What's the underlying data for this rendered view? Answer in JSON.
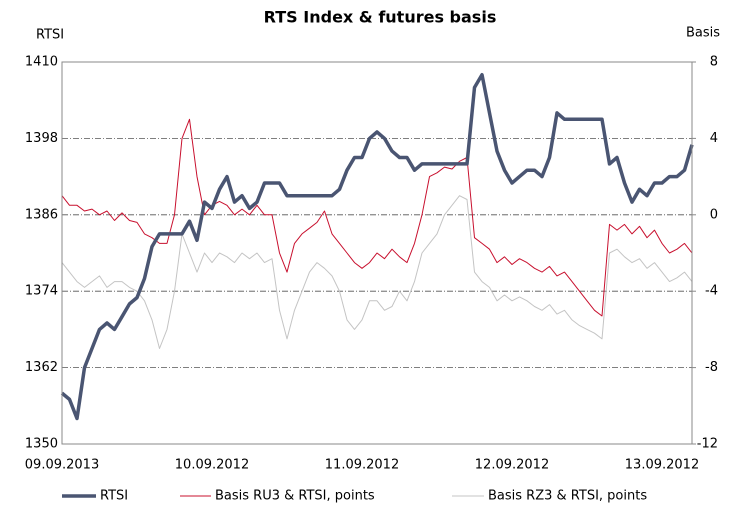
{
  "chart_data": {
    "type": "line",
    "title": "RTS Index & futures basis",
    "y_label": "RTSI",
    "y2_label": "Basis",
    "categories": [
      "09.09.2013",
      null,
      null,
      null,
      null,
      null,
      null,
      null,
      null,
      null,
      null,
      null,
      null,
      null,
      null,
      null,
      null,
      null,
      null,
      null,
      "10.09.2012",
      null,
      null,
      null,
      null,
      null,
      null,
      null,
      null,
      null,
      null,
      null,
      null,
      null,
      null,
      null,
      null,
      null,
      null,
      null,
      "11.09.2012",
      null,
      null,
      null,
      null,
      null,
      null,
      null,
      null,
      null,
      null,
      null,
      null,
      null,
      null,
      null,
      null,
      null,
      null,
      null,
      "12.09.2012",
      null,
      null,
      null,
      null,
      null,
      null,
      null,
      null,
      null,
      null,
      null,
      null,
      null,
      null,
      null,
      null,
      null,
      null,
      null,
      "13.09.2012",
      null,
      null,
      null,
      null
    ],
    "ylim": [
      1350,
      1410
    ],
    "yticks": [
      1350,
      1362,
      1374,
      1386,
      1398,
      1410
    ],
    "y2lim": [
      -12,
      8
    ],
    "y2ticks": [
      -12,
      -8,
      -4,
      0,
      4,
      8
    ],
    "grid": true,
    "legend": "bottom",
    "series": [
      {
        "name": "RTSI",
        "color": "#4a5572",
        "width": 3.5,
        "values": [
          1358,
          1357,
          1354,
          1362,
          1365,
          1368,
          1369,
          1368,
          1370,
          1372,
          1373,
          1376,
          1381,
          1383,
          1383,
          1383,
          1383,
          1385,
          1382,
          1388,
          1387,
          1390,
          1392,
          1388,
          1389,
          1387,
          1388,
          1391,
          1391,
          1391,
          1389,
          1389,
          1389,
          1389,
          1389,
          1389,
          1389,
          1390,
          1393,
          1395,
          1395,
          1398,
          1399,
          1398,
          1396,
          1395,
          1395,
          1393,
          1394,
          1394,
          1394,
          1394,
          1394,
          1394,
          1394,
          1406,
          1408,
          1402,
          1396,
          1393,
          1391,
          1392,
          1393,
          1393,
          1392,
          1395,
          1402,
          1401,
          1401,
          1401,
          1401,
          1401,
          1401,
          1394,
          1395,
          1391,
          1388,
          1390,
          1389,
          1391,
          1391,
          1392,
          1392,
          1393,
          1397
        ]
      },
      {
        "name": "Basis RU3 & RTSI, points",
        "color": "#c8102e",
        "width": 1,
        "axis": "y2",
        "values": [
          1,
          0.5,
          0.5,
          0.2,
          0.3,
          0,
          0.2,
          -0.3,
          0.1,
          -0.3,
          -0.4,
          -1,
          -1.2,
          -1.5,
          -1.5,
          0,
          4,
          5,
          2,
          0,
          0.5,
          0.7,
          0.5,
          0,
          0.3,
          0,
          0.5,
          0,
          0,
          -2,
          -3,
          -1.5,
          -1,
          -0.7,
          -0.4,
          0.2,
          -1,
          -1.5,
          -2,
          -2.5,
          -2.8,
          -2.5,
          -2,
          -2.3,
          -1.8,
          -2.2,
          -2.5,
          -1.5,
          0,
          2,
          2.2,
          2.5,
          2.4,
          2.8,
          3,
          -1.2,
          -1.5,
          -1.8,
          -2.5,
          -2.2,
          -2.6,
          -2.3,
          -2.5,
          -2.8,
          -3,
          -2.7,
          -3.2,
          -3,
          -3.5,
          -4,
          -4.5,
          -5,
          -5.3,
          -0.5,
          -0.8,
          -0.5,
          -1,
          -0.6,
          -1.2,
          -0.8,
          -1.5,
          -2,
          -1.8,
          -1.5,
          -2
        ]
      },
      {
        "name": "Basis RZ3 & RTSI, points",
        "color": "#c4c4c4",
        "width": 1,
        "axis": "y2",
        "values": [
          -2.5,
          -3,
          -3.5,
          -3.8,
          -3.5,
          -3.2,
          -3.8,
          -3.5,
          -3.5,
          -3.8,
          -4,
          -4.5,
          -5.5,
          -7,
          -6,
          -4,
          -1,
          -2,
          -3,
          -2,
          -2.5,
          -2,
          -2.2,
          -2.5,
          -2,
          -2.3,
          -2,
          -2.5,
          -2.3,
          -5,
          -6.5,
          -5,
          -4,
          -3,
          -2.5,
          -2.8,
          -3.2,
          -4,
          -5.5,
          -6,
          -5.5,
          -4.5,
          -4.5,
          -5,
          -4.8,
          -4,
          -4.5,
          -3.5,
          -2,
          -1.5,
          -1,
          0,
          0.5,
          1,
          0.8,
          -3,
          -3.5,
          -3.8,
          -4.5,
          -4.2,
          -4.5,
          -4.3,
          -4.5,
          -4.8,
          -5,
          -4.7,
          -5.2,
          -5,
          -5.5,
          -5.8,
          -6,
          -6.2,
          -6.5,
          -2,
          -1.8,
          -2.2,
          -2.5,
          -2.3,
          -2.8,
          -2.5,
          -3,
          -3.5,
          -3.3,
          -3,
          -3.5
        ]
      }
    ]
  }
}
